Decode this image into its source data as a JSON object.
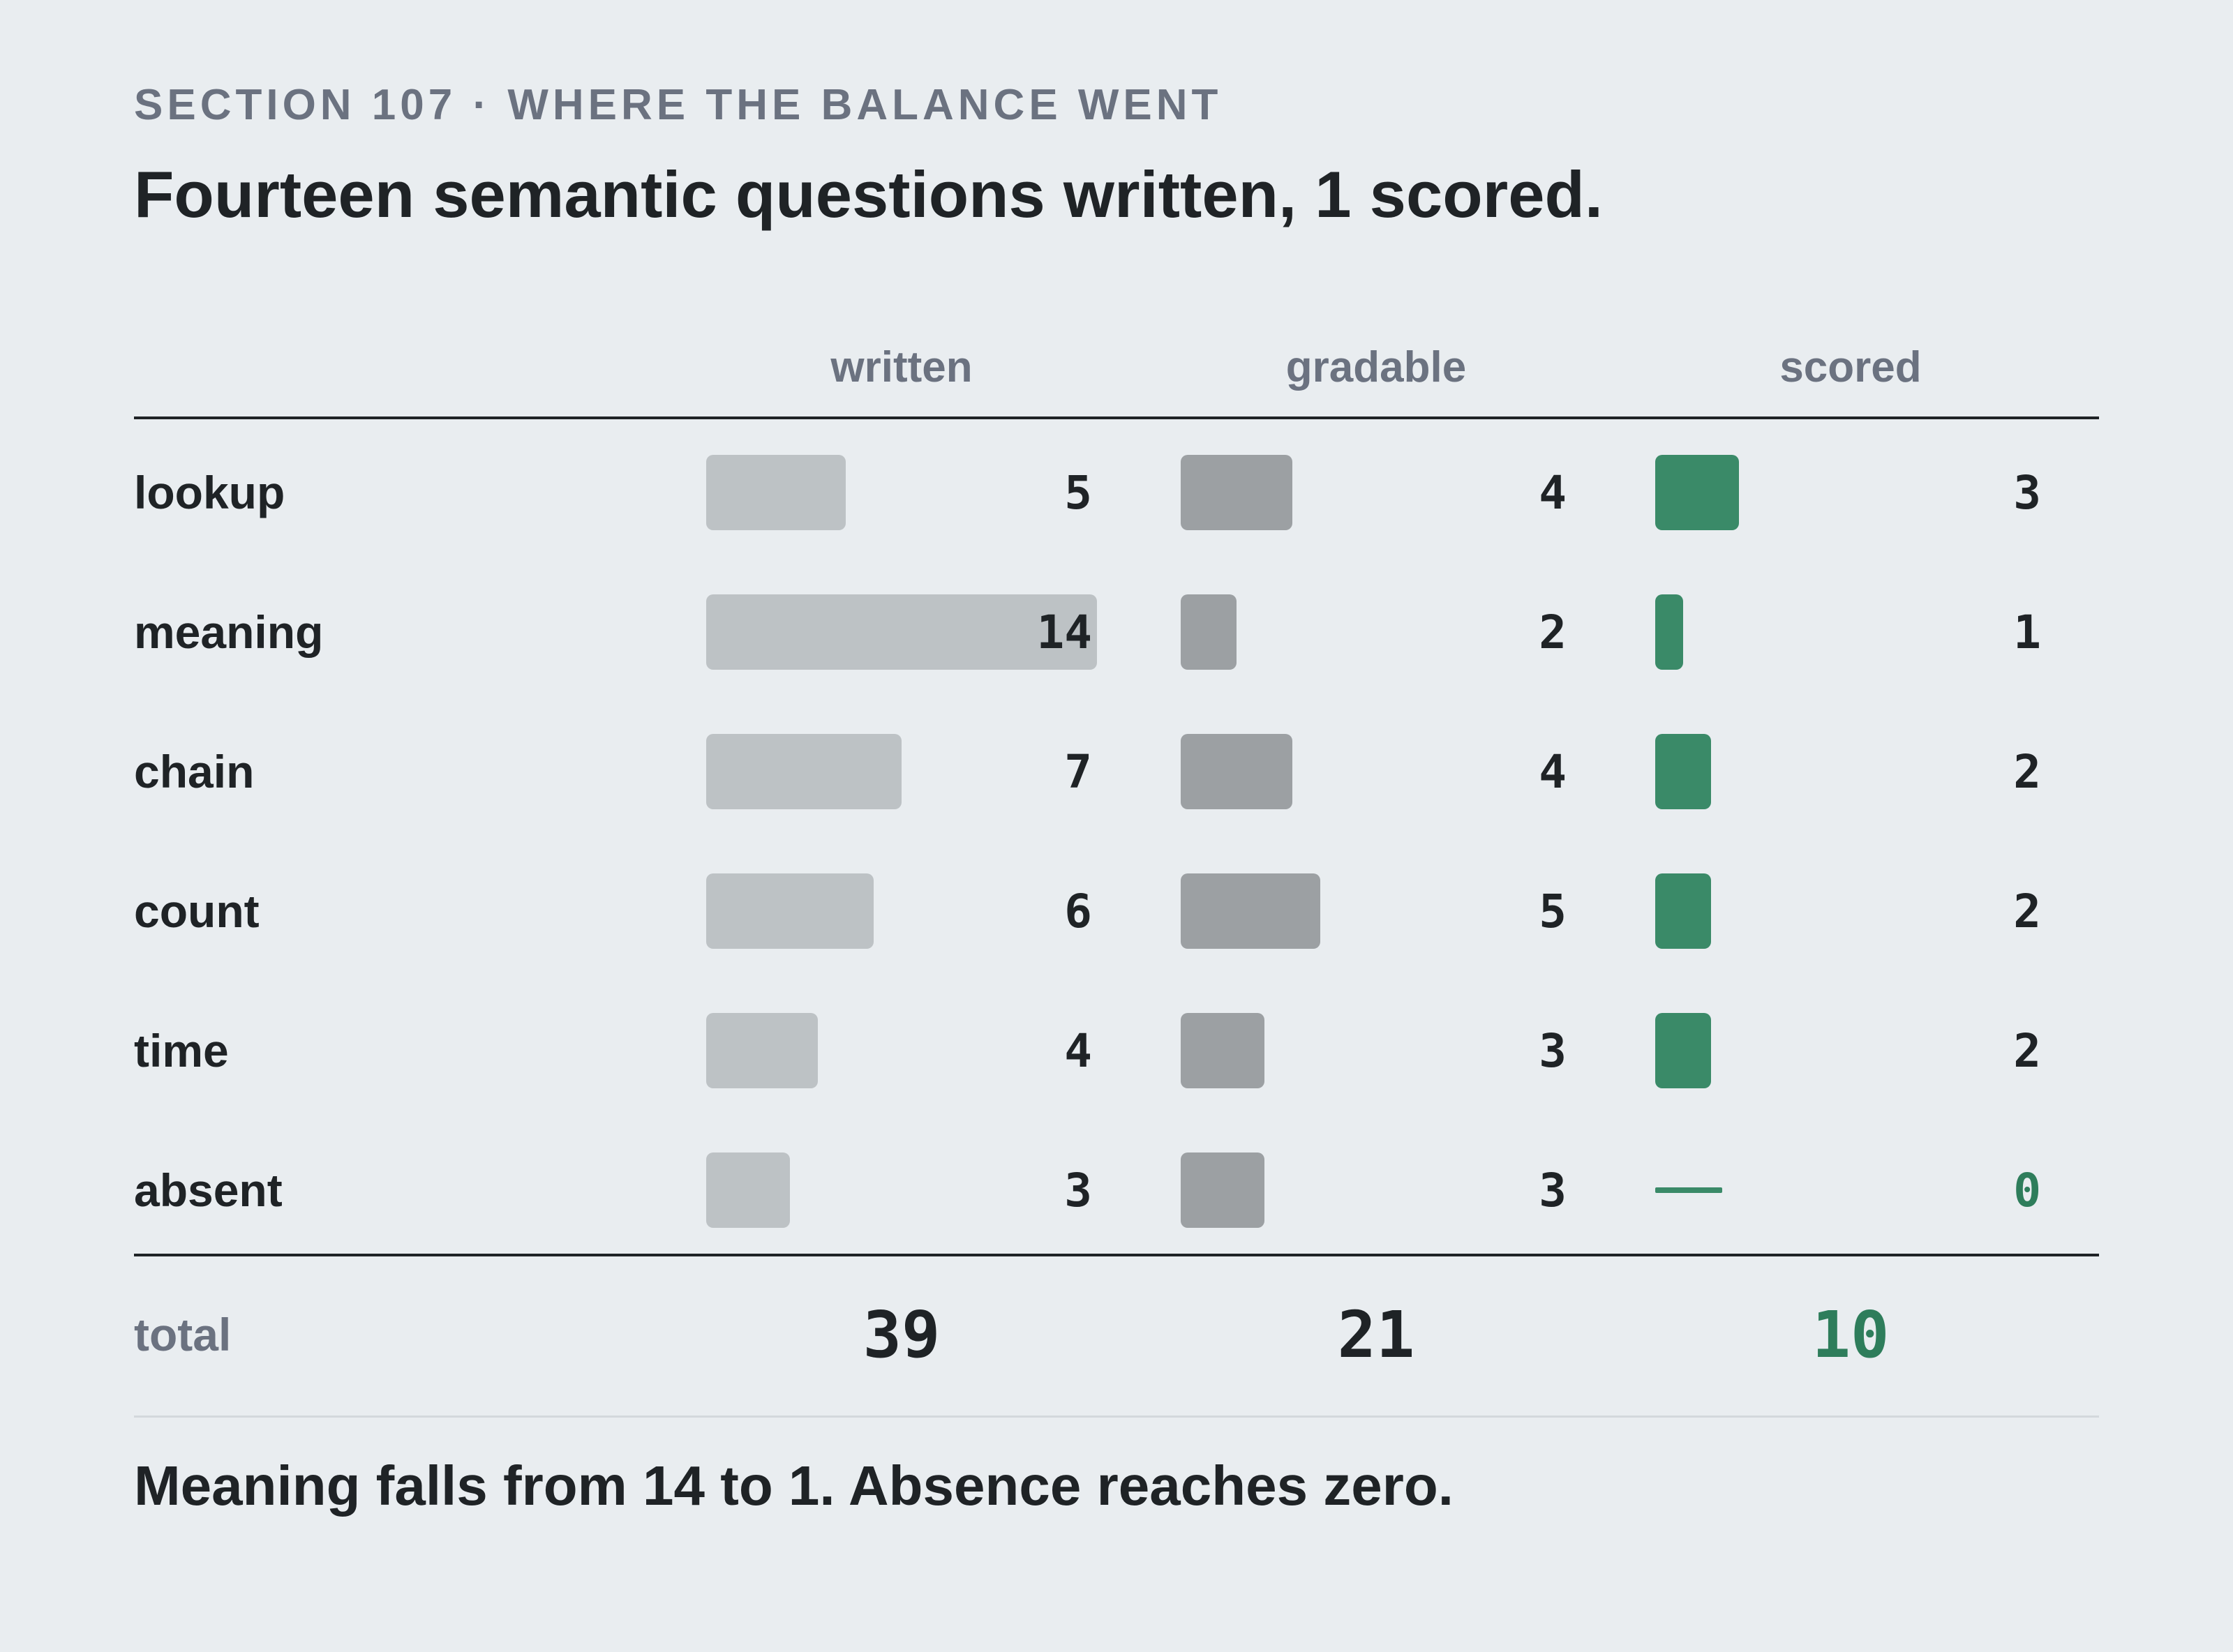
{
  "eyebrow": "SECTION 107 · WHERE THE BALANCE WENT",
  "title": "Fourteen semantic questions written, 1 scored.",
  "footer": "Meaning falls from 14 to 1. Absence reaches zero.",
  "colors": {
    "background": "#e9edf0",
    "written_bar": "#bdc2c5",
    "gradable_bar": "#9ca0a3",
    "scored_bar": "#3a8a68",
    "accent_text": "#2e7d5b"
  },
  "chart_data": {
    "type": "table",
    "columns": [
      "written",
      "gradable",
      "scored"
    ],
    "categories": [
      "lookup",
      "meaning",
      "chain",
      "count",
      "time",
      "absent"
    ],
    "series": [
      {
        "name": "written",
        "values": [
          5,
          14,
          7,
          6,
          4,
          3
        ]
      },
      {
        "name": "gradable",
        "values": [
          4,
          2,
          4,
          5,
          3,
          3
        ]
      },
      {
        "name": "scored",
        "values": [
          3,
          1,
          2,
          2,
          2,
          0
        ]
      }
    ],
    "total_label": "total",
    "totals": [
      39,
      21,
      10
    ],
    "bar_max": 14
  }
}
